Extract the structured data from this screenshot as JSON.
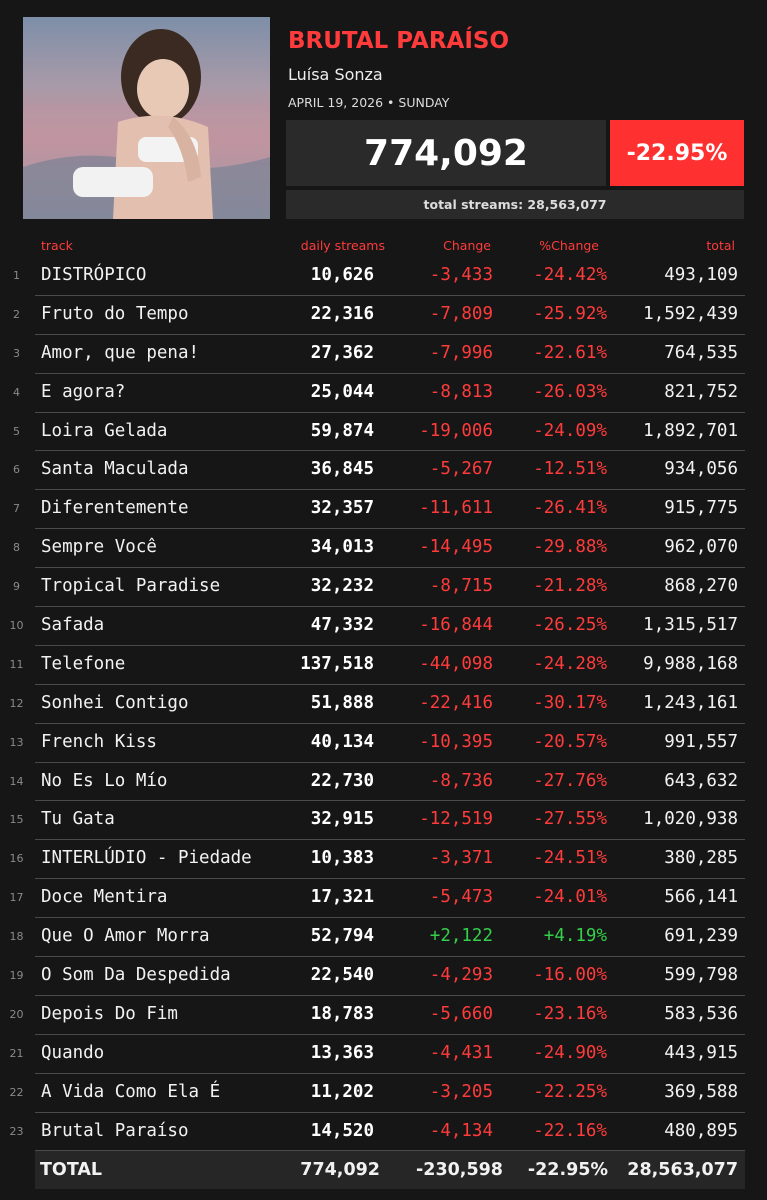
{
  "album": {
    "title": "BRUTAL PARAÍSO",
    "artist": "Luísa Sonza",
    "date": "APRIL 19, 2026 • SUNDAY",
    "daily_total": "774,092",
    "pct_change": "-22.95%",
    "total_streams_label": "total streams: 28,563,077"
  },
  "headers": {
    "track": "track",
    "daily": "daily streams",
    "change": "Change",
    "pct": "%Change",
    "total": "total"
  },
  "colors": {
    "accent": "#ff3b3b",
    "positive": "#33d04a",
    "panel": "#2a2a2a",
    "background": "#161616"
  },
  "rows": [
    {
      "rank": "1",
      "track": "DISTRÓPICO",
      "daily": "10,626",
      "change": "-3,433",
      "pct": "-24.42%",
      "total": "493,109",
      "dir": "neg"
    },
    {
      "rank": "2",
      "track": "Fruto do Tempo",
      "daily": "22,316",
      "change": "-7,809",
      "pct": "-25.92%",
      "total": "1,592,439",
      "dir": "neg"
    },
    {
      "rank": "3",
      "track": "Amor, que pena!",
      "daily": "27,362",
      "change": "-7,996",
      "pct": "-22.61%",
      "total": "764,535",
      "dir": "neg"
    },
    {
      "rank": "4",
      "track": "E agora?",
      "daily": "25,044",
      "change": "-8,813",
      "pct": "-26.03%",
      "total": "821,752",
      "dir": "neg"
    },
    {
      "rank": "5",
      "track": "Loira Gelada",
      "daily": "59,874",
      "change": "-19,006",
      "pct": "-24.09%",
      "total": "1,892,701",
      "dir": "neg"
    },
    {
      "rank": "6",
      "track": "Santa Maculada",
      "daily": "36,845",
      "change": "-5,267",
      "pct": "-12.51%",
      "total": "934,056",
      "dir": "neg"
    },
    {
      "rank": "7",
      "track": "Diferentemente",
      "daily": "32,357",
      "change": "-11,611",
      "pct": "-26.41%",
      "total": "915,775",
      "dir": "neg"
    },
    {
      "rank": "8",
      "track": "Sempre Você",
      "daily": "34,013",
      "change": "-14,495",
      "pct": "-29.88%",
      "total": "962,070",
      "dir": "neg"
    },
    {
      "rank": "9",
      "track": "Tropical Paradise",
      "daily": "32,232",
      "change": "-8,715",
      "pct": "-21.28%",
      "total": "868,270",
      "dir": "neg"
    },
    {
      "rank": "10",
      "track": "Safada",
      "daily": "47,332",
      "change": "-16,844",
      "pct": "-26.25%",
      "total": "1,315,517",
      "dir": "neg"
    },
    {
      "rank": "11",
      "track": "Telefone",
      "daily": "137,518",
      "change": "-44,098",
      "pct": "-24.28%",
      "total": "9,988,168",
      "dir": "neg"
    },
    {
      "rank": "12",
      "track": "Sonhei Contigo",
      "daily": "51,888",
      "change": "-22,416",
      "pct": "-30.17%",
      "total": "1,243,161",
      "dir": "neg"
    },
    {
      "rank": "13",
      "track": "French Kiss",
      "daily": "40,134",
      "change": "-10,395",
      "pct": "-20.57%",
      "total": "991,557",
      "dir": "neg"
    },
    {
      "rank": "14",
      "track": "No Es Lo Mío",
      "daily": "22,730",
      "change": "-8,736",
      "pct": "-27.76%",
      "total": "643,632",
      "dir": "neg"
    },
    {
      "rank": "15",
      "track": "Tu Gata",
      "daily": "32,915",
      "change": "-12,519",
      "pct": "-27.55%",
      "total": "1,020,938",
      "dir": "neg"
    },
    {
      "rank": "16",
      "track": "INTERLÚDIO - Piedade",
      "daily": "10,383",
      "change": "-3,371",
      "pct": "-24.51%",
      "total": "380,285",
      "dir": "neg"
    },
    {
      "rank": "17",
      "track": "Doce Mentira",
      "daily": "17,321",
      "change": "-5,473",
      "pct": "-24.01%",
      "total": "566,141",
      "dir": "neg"
    },
    {
      "rank": "18",
      "track": "Que O Amor Morra",
      "daily": "52,794",
      "change": "+2,122",
      "pct": "+4.19%",
      "total": "691,239",
      "dir": "pos"
    },
    {
      "rank": "19",
      "track": "O Som Da Despedida",
      "daily": "22,540",
      "change": "-4,293",
      "pct": "-16.00%",
      "total": "599,798",
      "dir": "neg"
    },
    {
      "rank": "20",
      "track": "Depois Do Fim",
      "daily": "18,783",
      "change": "-5,660",
      "pct": "-23.16%",
      "total": "583,536",
      "dir": "neg"
    },
    {
      "rank": "21",
      "track": "Quando",
      "daily": "13,363",
      "change": "-4,431",
      "pct": "-24.90%",
      "total": "443,915",
      "dir": "neg"
    },
    {
      "rank": "22",
      "track": "A Vida Como Ela É",
      "daily": "11,202",
      "change": "-3,205",
      "pct": "-22.25%",
      "total": "369,588",
      "dir": "neg"
    },
    {
      "rank": "23",
      "track": "Brutal Paraíso",
      "daily": "14,520",
      "change": "-4,134",
      "pct": "-22.16%",
      "total": "480,895",
      "dir": "neg"
    }
  ],
  "totals": {
    "label": "TOTAL",
    "daily": "774,092",
    "change": "-230,598",
    "pct": "-22.95%",
    "total": "28,563,077"
  }
}
